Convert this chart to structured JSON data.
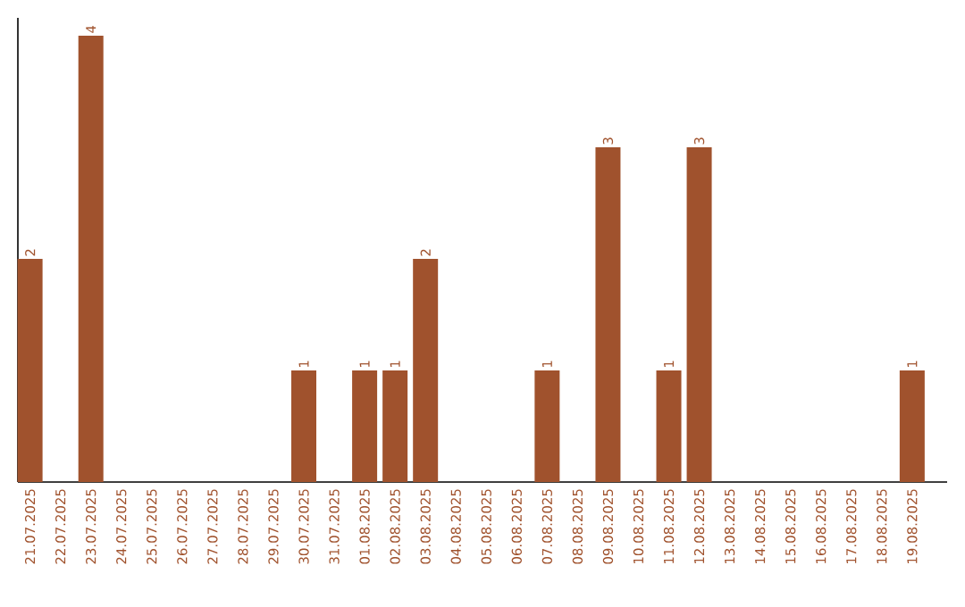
{
  "chart_data": {
    "type": "bar",
    "color": "#a0522d",
    "categories": [
      "21.07.2025",
      "22.07.2025",
      "23.07.2025",
      "24.07.2025",
      "25.07.2025",
      "26.07.2025",
      "27.07.2025",
      "28.07.2025",
      "29.07.2025",
      "30.07.2025",
      "31.07.2025",
      "01.08.2025",
      "02.08.2025",
      "03.08.2025",
      "04.08.2025",
      "05.08.2025",
      "06.08.2025",
      "07.08.2025",
      "08.08.2025",
      "09.08.2025",
      "10.08.2025",
      "11.08.2025",
      "12.08.2025",
      "13.08.2025",
      "14.08.2025",
      "15.08.2025",
      "16.08.2025",
      "17.08.2025",
      "18.08.2025",
      "19.08.2025"
    ],
    "values": [
      2,
      0,
      4,
      0,
      0,
      0,
      0,
      0,
      0,
      1,
      0,
      1,
      1,
      2,
      0,
      0,
      0,
      1,
      0,
      3,
      0,
      1,
      3,
      0,
      0,
      0,
      0,
      0,
      0,
      1
    ],
    "value_labels": [
      "2",
      null,
      "4",
      null,
      null,
      null,
      null,
      null,
      null,
      "1",
      null,
      "1",
      "1",
      "2",
      null,
      null,
      null,
      "1",
      null,
      "3",
      null,
      "1",
      "3",
      null,
      null,
      null,
      null,
      null,
      null,
      "1"
    ],
    "data_labels": false
  }
}
